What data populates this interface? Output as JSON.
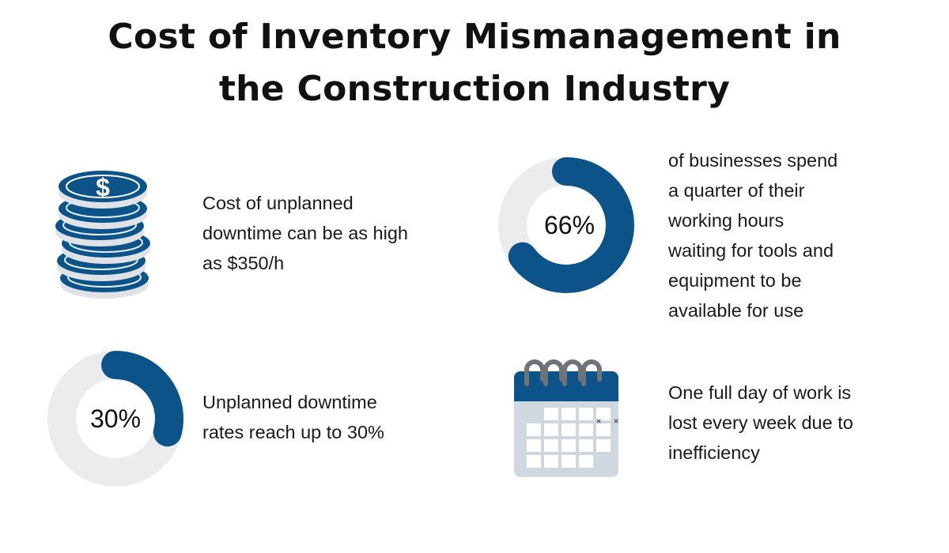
{
  "title": {
    "line1": "Cost of Inventory Mismanagement in",
    "line2": "the Construction Industry"
  },
  "colors": {
    "accent": "#0b5389",
    "track": "#ececee",
    "coin_edge": "#dfe3e8",
    "calendar_body": "#cfd8df",
    "calendar_ring": "#6f7378"
  },
  "stats": {
    "downtime_cost": {
      "icon": "coin-stack-icon",
      "lines": [
        "Cost of unplanned",
        "downtime can be as high",
        "as $350/h"
      ]
    },
    "waiting_tools": {
      "lines": [
        "of businesses spend",
        "a quarter of their",
        "working hours",
        "waiting for tools and",
        "equipment to be",
        "available for use"
      ]
    },
    "downtime_rate": {
      "lines": [
        "Unplanned downtime",
        "rates reach up to 30%"
      ]
    },
    "lost_day": {
      "icon": "calendar-icon",
      "lines": [
        "One full day of work is",
        "lost every week due to",
        "inefficiency"
      ]
    }
  },
  "chart_data": [
    {
      "type": "pie",
      "name": "",
      "label": "66%",
      "values": [
        66,
        34
      ]
    },
    {
      "type": "pie",
      "name": "",
      "label": "30%",
      "values": [
        30,
        70
      ]
    }
  ]
}
